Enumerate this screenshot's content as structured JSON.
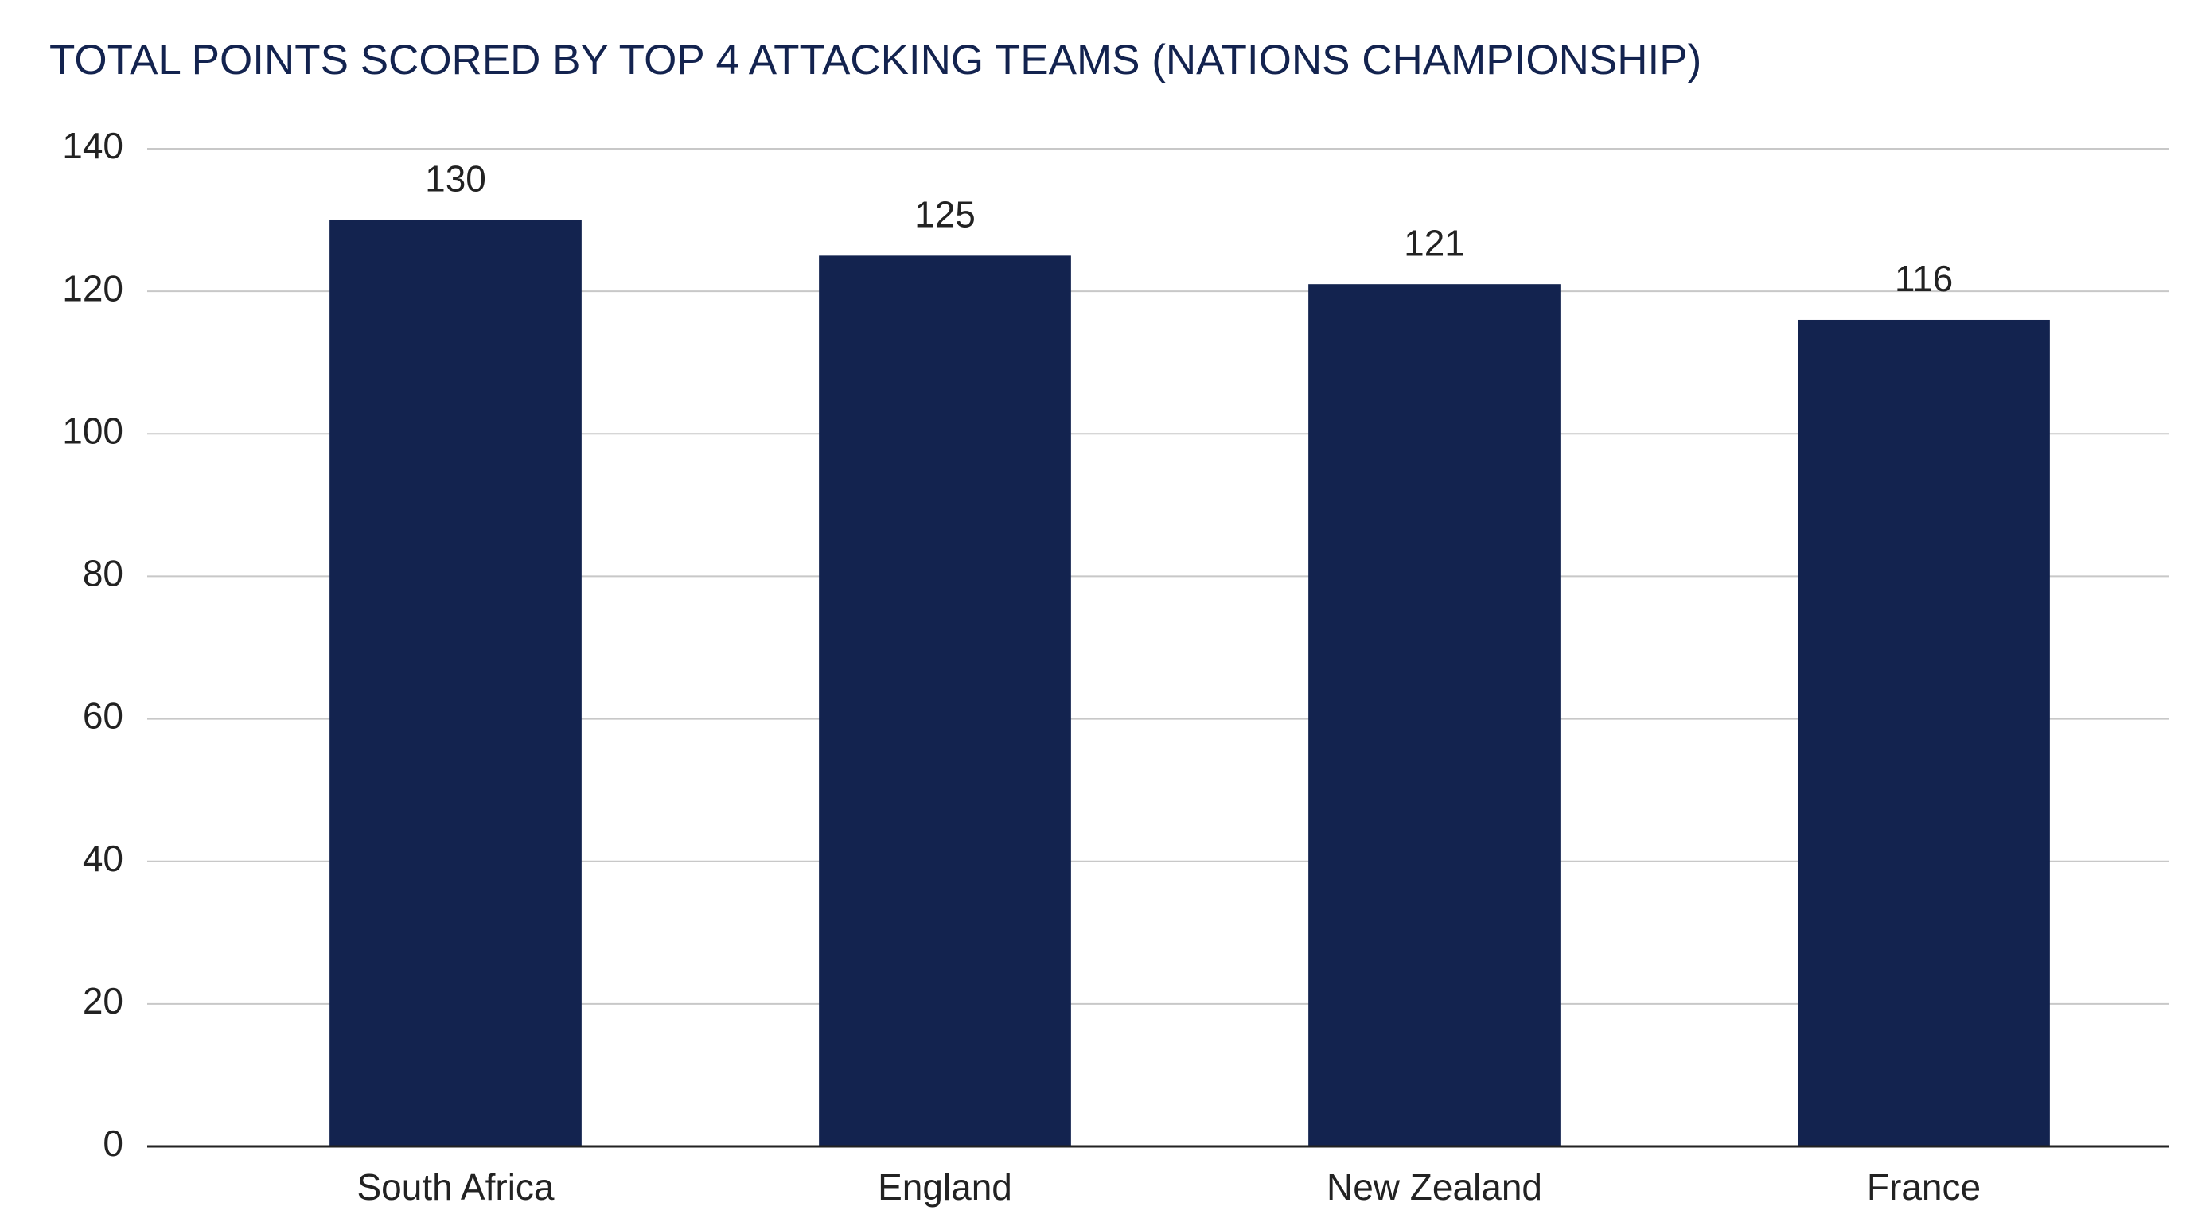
{
  "chart_data": {
    "type": "bar",
    "title": "TOTAL POINTS SCORED BY TOP 4 ATTACKING TEAMS (NATIONS CHAMPIONSHIP)",
    "categories": [
      "South Africa",
      "England",
      "New Zealand",
      "France"
    ],
    "values": [
      130,
      125,
      121,
      116
    ],
    "color": "#13234f",
    "ylim": [
      0,
      140
    ],
    "yticks": [
      0,
      20,
      40,
      60,
      80,
      100,
      120,
      140
    ],
    "grid": true
  }
}
